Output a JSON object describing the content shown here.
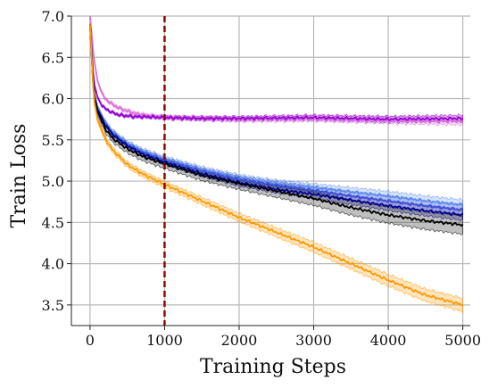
{
  "chart_data": {
    "type": "line",
    "title": "",
    "xlabel": "Training Steps",
    "ylabel": "Train Loss",
    "xlim": [
      -250,
      5100
    ],
    "ylim": [
      3.25,
      7.0
    ],
    "xticks": [
      0,
      1000,
      2000,
      3000,
      4000,
      5000
    ],
    "yticks": [
      3.5,
      4.0,
      4.5,
      5.0,
      5.5,
      6.0,
      6.5,
      7.0
    ],
    "grid": true,
    "legend": "none",
    "vline": {
      "x": 1000,
      "color": "#8b0000",
      "style": "dashed"
    },
    "series": [
      {
        "color": "#da70d6",
        "band": 0.03,
        "x": [
          0,
          50,
          100,
          150,
          200,
          300,
          400,
          500,
          600,
          800,
          1000,
          1500,
          2000,
          3000,
          4000,
          5000
        ],
        "y": [
          7.0,
          6.5,
          6.22,
          6.08,
          6.0,
          5.93,
          5.88,
          5.85,
          5.82,
          5.79,
          5.77,
          5.76,
          5.75,
          5.76,
          5.74,
          5.73
        ]
      },
      {
        "color": "#9400d3",
        "band": 0.025,
        "x": [
          0,
          50,
          100,
          150,
          200,
          300,
          400,
          500,
          600,
          800,
          1000,
          1500,
          2000,
          3000,
          4000,
          5000
        ],
        "y": [
          6.9,
          6.2,
          6.02,
          5.93,
          5.88,
          5.83,
          5.8,
          5.79,
          5.78,
          5.78,
          5.77,
          5.76,
          5.76,
          5.77,
          5.75,
          5.76
        ]
      },
      {
        "color": "#5b8def",
        "band": 0.04,
        "x": [
          0,
          50,
          100,
          200,
          300,
          500,
          700,
          1000,
          1500,
          2000,
          2500,
          3000,
          3500,
          4000,
          4500,
          5000
        ],
        "y": [
          6.9,
          6.08,
          5.9,
          5.72,
          5.6,
          5.46,
          5.37,
          5.27,
          5.14,
          5.04,
          4.97,
          4.92,
          4.87,
          4.82,
          4.76,
          4.71
        ]
      },
      {
        "color": "#3f51d8",
        "band": 0.04,
        "x": [
          0,
          50,
          100,
          200,
          300,
          500,
          700,
          1000,
          1500,
          2000,
          2500,
          3000,
          3500,
          4000,
          4500,
          5000
        ],
        "y": [
          6.9,
          6.07,
          5.88,
          5.7,
          5.58,
          5.44,
          5.35,
          5.25,
          5.12,
          5.02,
          4.95,
          4.89,
          4.82,
          4.76,
          4.7,
          4.65
        ]
      },
      {
        "color": "#00008b",
        "band": 0.04,
        "x": [
          0,
          50,
          100,
          200,
          300,
          500,
          700,
          1000,
          1500,
          2000,
          2500,
          3000,
          3500,
          4000,
          4500,
          5000
        ],
        "y": [
          6.9,
          6.06,
          5.87,
          5.69,
          5.57,
          5.43,
          5.33,
          5.23,
          5.09,
          4.98,
          4.9,
          4.84,
          4.77,
          4.7,
          4.64,
          4.59
        ]
      },
      {
        "color": "#000000",
        "band": 0.07,
        "x": [
          0,
          50,
          100,
          200,
          300,
          500,
          700,
          1000,
          1500,
          2000,
          2500,
          3000,
          3500,
          4000,
          4500,
          5000
        ],
        "y": [
          6.9,
          6.05,
          5.84,
          5.64,
          5.52,
          5.39,
          5.3,
          5.21,
          5.07,
          4.97,
          4.88,
          4.79,
          4.68,
          4.59,
          4.52,
          4.47
        ]
      },
      {
        "color": "#ff9900",
        "band": 0.05,
        "x": [
          0,
          50,
          100,
          200,
          300,
          500,
          700,
          1000,
          1500,
          2000,
          2500,
          3000,
          3500,
          4000,
          4500,
          5000
        ],
        "y": [
          6.9,
          6.0,
          5.75,
          5.52,
          5.38,
          5.2,
          5.09,
          4.96,
          4.76,
          4.56,
          4.38,
          4.2,
          4.0,
          3.8,
          3.62,
          3.5
        ]
      }
    ]
  }
}
